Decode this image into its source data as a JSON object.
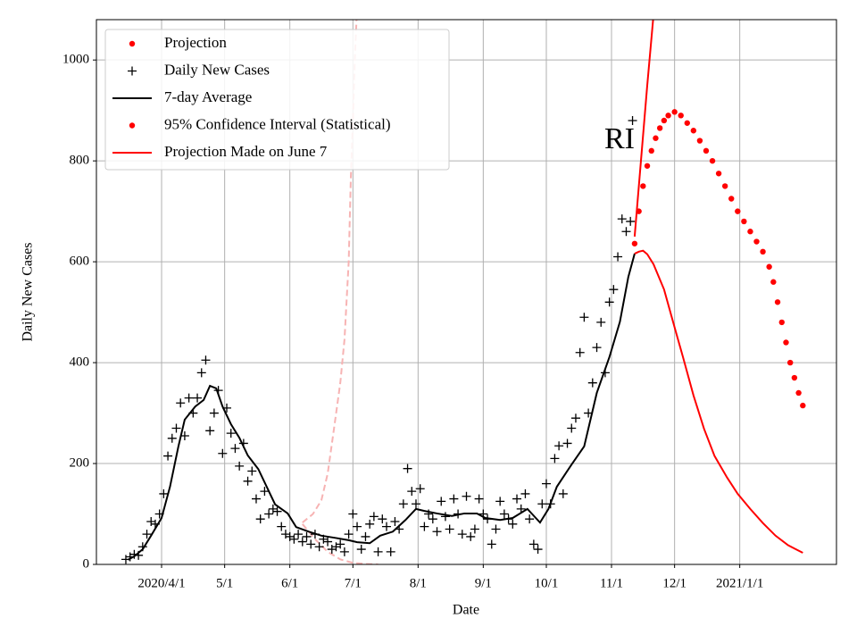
{
  "chart_data": {
    "type": "line",
    "xlabel": "Date",
    "ylabel": "Daily New Cases",
    "annotation": "RI",
    "xlim": [
      0,
      352
    ],
    "ylim": [
      0,
      1080
    ],
    "xticks": [
      {
        "value": 31,
        "label": "2020/4/1"
      },
      {
        "value": 61,
        "label": "5/1"
      },
      {
        "value": 92,
        "label": "6/1"
      },
      {
        "value": 122,
        "label": "7/1"
      },
      {
        "value": 153,
        "label": "8/1"
      },
      {
        "value": 184,
        "label": "9/1"
      },
      {
        "value": 214,
        "label": "10/1"
      },
      {
        "value": 245,
        "label": "11/1"
      },
      {
        "value": 275,
        "label": "12/1"
      },
      {
        "value": 306,
        "label": "2021/1/1"
      }
    ],
    "yticks": [
      0,
      200,
      400,
      600,
      800,
      1000
    ],
    "grid": true,
    "legend_position": "upper left",
    "legend": [
      {
        "label": "Projection",
        "style": "dots",
        "color": "#ff0000"
      },
      {
        "label": "Daily New Cases",
        "style": "plus",
        "color": "#000000"
      },
      {
        "label": "7-day Average",
        "style": "line",
        "color": "#000000"
      },
      {
        "label": "95% Confidence Interval (Statistical)",
        "style": "dots",
        "color": "#ff0000"
      },
      {
        "label": "Projection Made on June 7",
        "style": "line",
        "color": "#ff0000"
      }
    ],
    "series": [
      {
        "style": "dashed",
        "color": "#f7b3b3",
        "x": [
          98,
          104,
          110,
          116,
          122,
          128,
          134
        ],
        "values": [
          80,
          50,
          25,
          10,
          3,
          1,
          0
        ]
      },
      {
        "style": "dashed",
        "color": "#f7b3b3",
        "x": [
          98,
          103,
          107,
          110,
          113,
          116,
          118,
          120,
          121,
          122,
          123,
          125
        ],
        "values": [
          83,
          100,
          127,
          180,
          269,
          360,
          446,
          600,
          765,
          880,
          1012,
          1200
        ]
      },
      {
        "style": "plus",
        "color": "#000000",
        "x": [
          14,
          16,
          18,
          20,
          22,
          24,
          26,
          28,
          30,
          32,
          34,
          36,
          38,
          40,
          42,
          44,
          46,
          48,
          50,
          52,
          54,
          56,
          58,
          60,
          62,
          64,
          66,
          68,
          70,
          72,
          74,
          76,
          78,
          80,
          82,
          84,
          86,
          88,
          90,
          92,
          94,
          96,
          98,
          100,
          102,
          104,
          106,
          108,
          110,
          112,
          114,
          116,
          118,
          120,
          122,
          124,
          126,
          128,
          130,
          132,
          134,
          136,
          138,
          140,
          142,
          144,
          146,
          148,
          150,
          152,
          154,
          156,
          158,
          160,
          162,
          164,
          166,
          168,
          170,
          172,
          174,
          176,
          178,
          180,
          182,
          184,
          186,
          188,
          190,
          192,
          194,
          196,
          198,
          200,
          202,
          204,
          206,
          208,
          210,
          212,
          214,
          216,
          218,
          220,
          222,
          224,
          226,
          228,
          230,
          232,
          234,
          236,
          238,
          240,
          242,
          244,
          246,
          248,
          250,
          252,
          254,
          255
        ],
        "values": [
          10,
          15,
          20,
          18,
          35,
          60,
          85,
          80,
          100,
          140,
          215,
          250,
          270,
          320,
          255,
          330,
          300,
          330,
          380,
          405,
          265,
          300,
          345,
          220,
          310,
          260,
          230,
          195,
          240,
          165,
          185,
          130,
          90,
          145,
          100,
          110,
          105,
          75,
          60,
          55,
          50,
          60,
          45,
          55,
          40,
          60,
          35,
          50,
          45,
          30,
          35,
          40,
          25,
          60,
          100,
          75,
          30,
          55,
          80,
          95,
          25,
          90,
          75,
          25,
          85,
          70,
          120,
          190,
          145,
          120,
          150,
          75,
          100,
          90,
          65,
          125,
          95,
          70,
          130,
          100,
          60,
          135,
          55,
          70,
          130,
          100,
          90,
          40,
          70,
          125,
          100,
          90,
          80,
          130,
          110,
          140,
          90,
          40,
          30,
          120,
          160,
          120,
          210,
          235,
          140,
          240,
          270,
          290,
          420,
          490,
          300,
          360,
          430,
          480,
          380,
          520,
          545,
          610,
          685,
          660,
          680,
          880
        ]
      },
      {
        "style": "line",
        "color": "#000000",
        "x": [
          15,
          18,
          22,
          26,
          31,
          35,
          39,
          42,
          47,
          51,
          54,
          57,
          60,
          64,
          68,
          72,
          77,
          81,
          85,
          91,
          95,
          101,
          107,
          113,
          120,
          124,
          130,
          135,
          141,
          147,
          152,
          156,
          162,
          169,
          175,
          181,
          185,
          192,
          198,
          205,
          211,
          215,
          219,
          226,
          232,
          238,
          244,
          249,
          253,
          256
        ],
        "values": [
          9,
          16,
          30,
          57,
          92,
          154,
          234,
          287,
          313,
          326,
          354,
          349,
          313,
          278,
          251,
          216,
          189,
          154,
          119,
          101,
          74,
          65,
          57,
          53,
          48,
          44,
          42,
          57,
          65,
          88,
          110,
          106,
          101,
          96,
          101,
          101,
          92,
          88,
          92,
          110,
          83,
          110,
          154,
          198,
          234,
          340,
          411,
          481,
          570,
          616
        ]
      },
      {
        "style": "line",
        "color": "#ff0000",
        "x": [
          256,
          259,
          262,
          265,
          268
        ],
        "values": [
          650,
          800,
          950,
          1090,
          1240
        ]
      },
      {
        "style": "line",
        "color": "#ff0000",
        "x": [
          256,
          258,
          260,
          262,
          265,
          270,
          275,
          279,
          284,
          289,
          294,
          300,
          305,
          311,
          317,
          323,
          329,
          336
        ],
        "values": [
          616,
          620,
          622,
          615,
          595,
          545,
          470,
          411,
          335,
          269,
          215,
          172,
          140,
          110,
          82,
          57,
          38,
          23
        ]
      },
      {
        "style": "dots",
        "color": "#ff0000",
        "x": [
          256,
          258,
          260,
          262,
          264,
          266,
          268,
          270,
          272,
          275,
          278,
          281,
          284,
          287,
          290,
          293,
          296,
          299,
          302,
          305,
          308,
          311,
          314,
          317,
          320,
          322,
          324,
          326,
          328,
          330,
          332,
          334,
          336
        ],
        "values": [
          636,
          700,
          750,
          790,
          820,
          845,
          865,
          880,
          890,
          897,
          890,
          875,
          860,
          840,
          820,
          800,
          775,
          750,
          725,
          700,
          680,
          660,
          640,
          620,
          590,
          560,
          520,
          480,
          440,
          400,
          370,
          340,
          315
        ]
      }
    ]
  }
}
